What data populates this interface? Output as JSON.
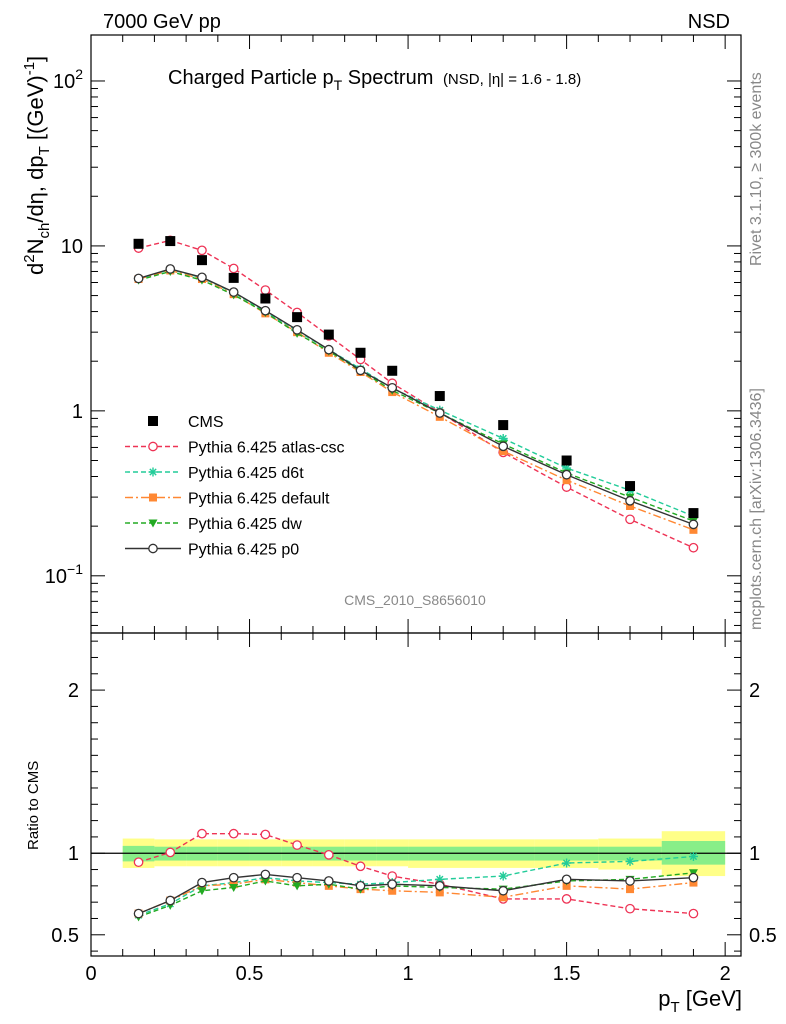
{
  "header": {
    "left": "7000 GeV pp",
    "right": "NSD"
  },
  "side_labels": {
    "rivet": "Rivet 3.1.10, ≥ 300k events",
    "mcplots": "mcplots.cern.ch [arXiv:1306.3436]"
  },
  "title": {
    "main": "Charged Particle p",
    "main_sub": "T",
    "main_tail": " Spectrum",
    "extra": "(NSD, |η| = 1.6 - 1.8)"
  },
  "analysis_id": "CMS_2010_S8656010",
  "y_label_top": "d²N_ch/dη, dp_T [(GeV)⁻¹]",
  "y_label_bottom": "Ratio to CMS",
  "x_label": "p_T [GeV]",
  "colors": {
    "cms": "#000000",
    "atlas": "#ee3355",
    "d6t": "#22cc99",
    "default": "#ff8833",
    "dw": "#22aa22",
    "p0": "#333333",
    "band_outer": "#ffff88",
    "band_inner": "#88ee88"
  },
  "legend": [
    {
      "key": "cms",
      "label": "CMS"
    },
    {
      "key": "atlas",
      "label": "Pythia 6.425 atlas-csc"
    },
    {
      "key": "d6t",
      "label": "Pythia 6.425 d6t"
    },
    {
      "key": "default",
      "label": "Pythia 6.425 default"
    },
    {
      "key": "dw",
      "label": "Pythia 6.425 dw"
    },
    {
      "key": "p0",
      "label": "Pythia 6.425 p0"
    }
  ],
  "chart_data": [
    {
      "type": "line",
      "yscale": "log",
      "xlim": [
        0,
        2.05
      ],
      "ylim": [
        0.045,
        190
      ],
      "x": [
        0.15,
        0.25,
        0.35,
        0.45,
        0.55,
        0.65,
        0.75,
        0.85,
        0.95,
        1.1,
        1.3,
        1.5,
        1.7,
        1.9
      ],
      "series": [
        {
          "name": "CMS",
          "key": "cms",
          "values": [
            10.3,
            10.7,
            8.2,
            6.4,
            4.8,
            3.7,
            2.9,
            2.25,
            1.75,
            1.23,
            0.82,
            0.5,
            0.35,
            0.24
          ]
        },
        {
          "name": "Pythia 6.425 atlas-csc",
          "key": "atlas",
          "values": [
            9.7,
            10.8,
            9.4,
            7.3,
            5.4,
            3.95,
            2.85,
            2.05,
            1.47,
            0.98,
            0.56,
            0.345,
            0.22,
            0.148
          ]
        },
        {
          "name": "Pythia 6.425 d6t",
          "key": "d6t",
          "values": [
            6.3,
            7.2,
            6.4,
            5.2,
            4.0,
            3.05,
            2.35,
            1.8,
            1.37,
            1.01,
            0.68,
            0.45,
            0.33,
            0.23
          ]
        },
        {
          "name": "Pythia 6.425 default",
          "key": "default",
          "values": [
            6.3,
            7.1,
            6.3,
            5.1,
            3.9,
            3.0,
            2.25,
            1.72,
            1.3,
            0.92,
            0.57,
            0.38,
            0.265,
            0.19
          ]
        },
        {
          "name": "Pythia 6.425 dw",
          "key": "dw",
          "values": [
            6.2,
            7.0,
            6.2,
            5.05,
            3.95,
            2.95,
            2.3,
            1.75,
            1.33,
            0.97,
            0.63,
            0.42,
            0.3,
            0.215
          ]
        },
        {
          "name": "Pythia 6.425 p0",
          "key": "p0",
          "values": [
            6.35,
            7.25,
            6.45,
            5.25,
            4.05,
            3.1,
            2.35,
            1.76,
            1.38,
            0.97,
            0.61,
            0.41,
            0.285,
            0.205
          ]
        }
      ],
      "yticks": [
        0.1,
        1,
        10,
        100
      ]
    },
    {
      "type": "line",
      "xlim": [
        0,
        2.05
      ],
      "ylim": [
        0.37,
        2.35
      ],
      "x": [
        0.15,
        0.25,
        0.35,
        0.45,
        0.55,
        0.65,
        0.75,
        0.85,
        0.95,
        1.1,
        1.3,
        1.5,
        1.7,
        1.9
      ],
      "series": [
        {
          "name": "Pythia 6.425 atlas-csc",
          "key": "atlas",
          "values": [
            0.945,
            1.005,
            1.12,
            1.12,
            1.115,
            1.05,
            0.99,
            0.92,
            0.86,
            0.81,
            0.72,
            0.72,
            0.66,
            0.63
          ]
        },
        {
          "name": "Pythia 6.425 d6t",
          "key": "d6t",
          "values": [
            0.62,
            0.69,
            0.8,
            0.82,
            0.85,
            0.83,
            0.82,
            0.81,
            0.82,
            0.84,
            0.86,
            0.94,
            0.95,
            0.98
          ]
        },
        {
          "name": "Pythia 6.425 default",
          "key": "default",
          "values": [
            0.63,
            0.71,
            0.8,
            0.81,
            0.84,
            0.82,
            0.8,
            0.78,
            0.77,
            0.76,
            0.73,
            0.8,
            0.78,
            0.82
          ]
        },
        {
          "name": "Pythia 6.425 dw",
          "key": "dw",
          "values": [
            0.61,
            0.68,
            0.77,
            0.79,
            0.83,
            0.8,
            0.81,
            0.78,
            0.8,
            0.79,
            0.78,
            0.83,
            0.84,
            0.88
          ]
        },
        {
          "name": "Pythia 6.425 p0",
          "key": "p0",
          "values": [
            0.63,
            0.71,
            0.82,
            0.85,
            0.87,
            0.85,
            0.83,
            0.8,
            0.81,
            0.8,
            0.77,
            0.84,
            0.83,
            0.85
          ]
        }
      ],
      "bands": {
        "edges": [
          0.1,
          0.2,
          0.3,
          0.4,
          0.5,
          0.6,
          0.7,
          0.8,
          0.9,
          1.0,
          1.2,
          1.4,
          1.6,
          1.8,
          2.0
        ],
        "outer": [
          [
            0.91,
            1.09
          ],
          [
            0.92,
            1.085
          ],
          [
            0.92,
            1.085
          ],
          [
            0.92,
            1.085
          ],
          [
            0.92,
            1.085
          ],
          [
            0.92,
            1.085
          ],
          [
            0.92,
            1.085
          ],
          [
            0.92,
            1.085
          ],
          [
            0.92,
            1.085
          ],
          [
            0.91,
            1.085
          ],
          [
            0.91,
            1.085
          ],
          [
            0.91,
            1.085
          ],
          [
            0.9,
            1.09
          ],
          [
            0.86,
            1.135
          ]
        ],
        "inner": [
          [
            0.95,
            1.045
          ],
          [
            0.955,
            1.04
          ],
          [
            0.955,
            1.04
          ],
          [
            0.955,
            1.04
          ],
          [
            0.955,
            1.04
          ],
          [
            0.955,
            1.04
          ],
          [
            0.955,
            1.04
          ],
          [
            0.955,
            1.04
          ],
          [
            0.955,
            1.04
          ],
          [
            0.955,
            1.04
          ],
          [
            0.955,
            1.04
          ],
          [
            0.955,
            1.04
          ],
          [
            0.955,
            1.04
          ],
          [
            0.93,
            1.075
          ]
        ]
      },
      "reference": 1,
      "yticks": [
        0.5,
        1,
        2
      ],
      "xticks": [
        0,
        0.5,
        1,
        1.5,
        2
      ]
    }
  ],
  "tick_labels": {
    "top_y": [
      {
        "base": "10",
        "exp": "−1"
      },
      {
        "base": "1",
        "exp": ""
      },
      {
        "base": "10",
        "exp": ""
      },
      {
        "base": "10",
        "exp": "2"
      }
    ],
    "bottom_y": [
      "0.5",
      "1",
      "2"
    ],
    "x": [
      "0",
      "0.5",
      "1",
      "1.5",
      "2"
    ]
  }
}
